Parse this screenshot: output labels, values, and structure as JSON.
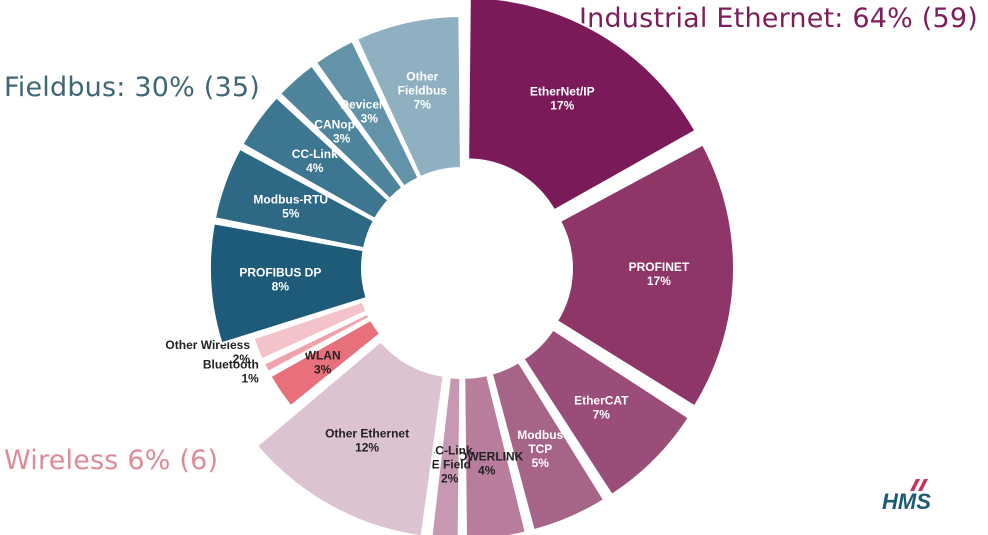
{
  "groups": {
    "industrial_ethernet": "Industrial Ethernet: 64% (59)",
    "fieldbus": "Fieldbus: 30% (35)",
    "wireless": "Wireless 6% (6)"
  },
  "logo_text": "HMS",
  "chart_data": {
    "type": "pie",
    "values_unit": "%",
    "slices": [
      {
        "name": "EtherNet/IP",
        "value": 17,
        "label": "17%",
        "color": "#7b1a59",
        "group": "industrial_ethernet"
      },
      {
        "name": "PROFINET",
        "value": 17,
        "label": "17%",
        "color": "#8f3669",
        "group": "industrial_ethernet"
      },
      {
        "name": "EtherCAT",
        "value": 7,
        "label": "7%",
        "color": "#9a4d79",
        "group": "industrial_ethernet"
      },
      {
        "name": "Modbus TCP",
        "value": 5,
        "label": "5%",
        "color": "#a76489",
        "group": "industrial_ethernet"
      },
      {
        "name": "POWERLINK",
        "value": 4,
        "label": "4%",
        "color": "#b87c9d",
        "group": "industrial_ethernet"
      },
      {
        "name": "CC-Link IE Field",
        "value": 2,
        "label": "2%",
        "color": "#c898b3",
        "group": "industrial_ethernet"
      },
      {
        "name": "Other Ethernet",
        "value": 12,
        "label": "12%",
        "color": "#dcc3d1",
        "group": "industrial_ethernet"
      },
      {
        "name": "WLAN",
        "value": 3,
        "label": "3%",
        "color": "#e8707c",
        "group": "wireless"
      },
      {
        "name": "Bluetooth",
        "value": 1,
        "label": "1%",
        "color": "#efa4ad",
        "group": "wireless"
      },
      {
        "name": "Other Wireless",
        "value": 2,
        "label": "2%",
        "color": "#f3c3c9",
        "group": "wireless"
      },
      {
        "name": "PROFIBUS DP",
        "value": 8,
        "label": "8%",
        "color": "#1e5b78",
        "group": "fieldbus"
      },
      {
        "name": "Modbus-RTU",
        "value": 5,
        "label": "5%",
        "color": "#2d6885",
        "group": "fieldbus"
      },
      {
        "name": "CC-Link",
        "value": 4,
        "label": "4%",
        "color": "#3d7690",
        "group": "fieldbus"
      },
      {
        "name": "CANopen",
        "value": 3,
        "label": "3%",
        "color": "#4e849c",
        "group": "fieldbus"
      },
      {
        "name": "DeviceNet",
        "value": 3,
        "label": "3%",
        "color": "#6393a8",
        "group": "fieldbus"
      },
      {
        "name": "Other Fieldbus",
        "value": 7,
        "label": "7%",
        "color": "#8fb0c0",
        "group": "fieldbus"
      }
    ]
  }
}
